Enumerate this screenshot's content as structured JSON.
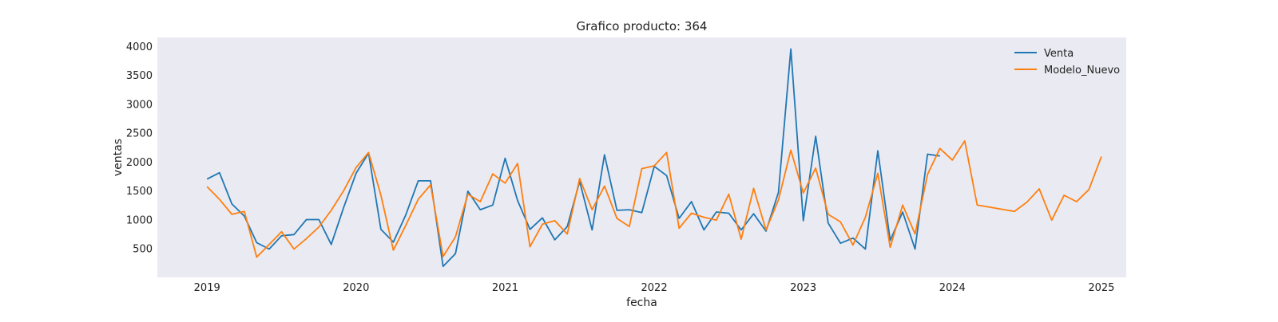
{
  "chart_data": {
    "type": "line",
    "title": "Grafico producto: 364",
    "xlabel": "fecha",
    "ylabel": "ventas",
    "x_ticks": [
      "2019",
      "2020",
      "2021",
      "2022",
      "2023",
      "2024",
      "2025"
    ],
    "y_ticks": [
      "500",
      "1000",
      "1500",
      "2000",
      "2500",
      "3000",
      "3500",
      "4000"
    ],
    "xlim": [
      "2018-09",
      "2025-03"
    ],
    "ylim": [
      0,
      4150
    ],
    "grid": false,
    "legend_position": "top-right",
    "colors": {
      "background": "#eaeaf2",
      "venta": "#1f77b4",
      "modelo_nuevo": "#ff7f0e"
    },
    "series": [
      {
        "name": "Venta",
        "start": "2019-01",
        "values": [
          1700,
          1810,
          1270,
          1060,
          600,
          490,
          720,
          740,
          1000,
          1000,
          570,
          1210,
          1800,
          2150,
          830,
          610,
          1080,
          1670,
          1670,
          190,
          410,
          1490,
          1170,
          1250,
          2060,
          1330,
          830,
          1030,
          650,
          880,
          1660,
          820,
          2120,
          1160,
          1170,
          1120,
          1920,
          1760,
          1020,
          1310,
          820,
          1130,
          1110,
          820,
          1100,
          800,
          1470,
          3950,
          980,
          2440,
          940,
          590,
          680,
          490,
          2190,
          640,
          1130,
          490,
          2130,
          2100
        ]
      },
      {
        "name": "Modelo_Nuevo",
        "start": "2019-01",
        "values": [
          1570,
          1350,
          1090,
          1140,
          350,
          570,
          790,
          490,
          670,
          870,
          1160,
          1500,
          1900,
          2160,
          1420,
          470,
          900,
          1350,
          1600,
          360,
          700,
          1440,
          1310,
          1790,
          1630,
          1970,
          530,
          920,
          980,
          750,
          1710,
          1170,
          1580,
          1020,
          880,
          1880,
          1930,
          2160,
          850,
          1110,
          1040,
          990,
          1440,
          660,
          1540,
          820,
          1340,
          2200,
          1460,
          1890,
          1090,
          960,
          560,
          1040,
          1800,
          520,
          1250,
          750,
          1780,
          2230,
          2030,
          2360,
          1250,
          null,
          null,
          1140,
          1300,
          1530,
          990,
          1420,
          1310,
          1520,
          2090
        ]
      }
    ]
  }
}
